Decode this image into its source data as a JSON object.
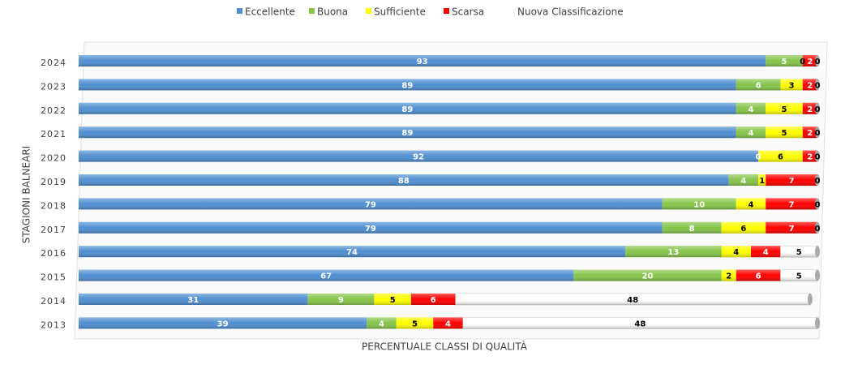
{
  "chart_data": {
    "type": "stacked-bar-horizontal",
    "y_axis_title": "STAGIONI BALNEARI",
    "x_axis_title": "PERCENTUALE CLASSI DI QUALITÀ",
    "categories": [
      "2024",
      "2023",
      "2022",
      "2021",
      "2020",
      "2019",
      "2018",
      "2017",
      "2016",
      "2015",
      "2014",
      "2013"
    ],
    "series": [
      {
        "name": "Eccellente",
        "color": "#4f8fd0",
        "label_color": "#ffffff",
        "values": [
          93,
          89,
          89,
          89,
          92,
          88,
          79,
          79,
          74,
          67,
          31,
          39
        ]
      },
      {
        "name": "Buona",
        "color": "#86c44a",
        "label_color": "#ffffff",
        "values": [
          5,
          6,
          4,
          4,
          0,
          4,
          10,
          8,
          13,
          20,
          9,
          4
        ]
      },
      {
        "name": "Sufficiente",
        "color": "#ffff00",
        "label_color": "#000000",
        "values": [
          0,
          3,
          5,
          5,
          6,
          1,
          4,
          6,
          4,
          2,
          5,
          5
        ]
      },
      {
        "name": "Scarsa",
        "color": "#ff0000",
        "label_color": "#ffffff",
        "values": [
          2,
          2,
          2,
          2,
          2,
          7,
          7,
          7,
          4,
          6,
          6,
          4
        ]
      },
      {
        "name": "Nuova Classificazione",
        "color": "#ffffff",
        "label_color": "#000000",
        "values": [
          0,
          0,
          0,
          0,
          0,
          0,
          0,
          0,
          5,
          5,
          48,
          48
        ]
      }
    ]
  }
}
